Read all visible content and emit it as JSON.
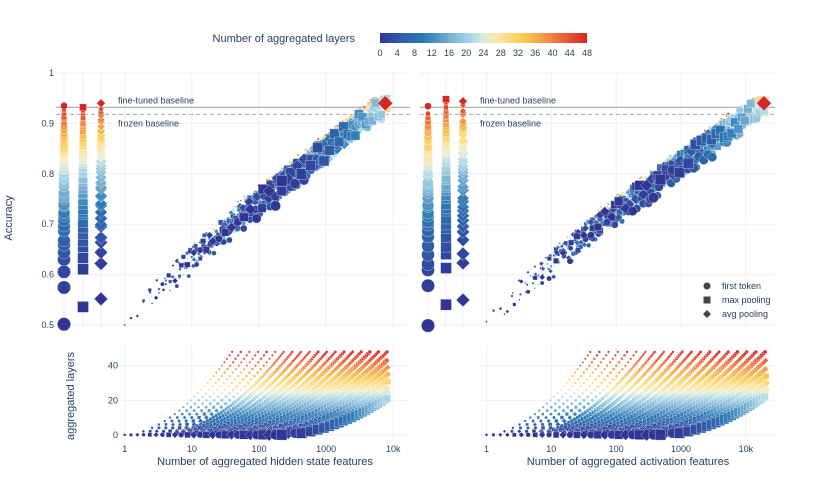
{
  "chart_data": {
    "type": "scatter",
    "colorbar": {
      "title": "Number of aggregated layers",
      "range": [
        0,
        48
      ],
      "ticks": [
        "0",
        "4",
        "8",
        "12",
        "16",
        "20",
        "24",
        "28",
        "32",
        "36",
        "40",
        "44",
        "48"
      ]
    },
    "yaxis_top": {
      "title": "Accuracy",
      "range": [
        0.49,
        1.0
      ],
      "ticks": [
        "0.5",
        "0.6",
        "0.7",
        "0.8",
        "0.9",
        "1"
      ]
    },
    "yaxis_bottom": {
      "title": "aggregated layers",
      "range": [
        -3,
        52
      ],
      "ticks": [
        "0",
        "20",
        "40"
      ]
    },
    "panels": [
      {
        "xlabel": "Number of aggregated hidden state features",
        "xticks": [
          "1",
          "10",
          "100",
          "1000",
          "10k"
        ],
        "xrange_log10": [
          -0.1,
          4.25
        ],
        "x_max": 8000,
        "finetuned_baseline": 0.932,
        "frozen_baseline": 0.918,
        "top_acc_start": 0.5,
        "top_acc_end": 0.95,
        "strip_max_first": 0.935,
        "strip_max_max": 0.932,
        "strip_max_avg": 0.94
      },
      {
        "xlabel": "Number of aggregated activation features",
        "xticks": [
          "1",
          "10",
          "100",
          "1000",
          "10k"
        ],
        "xrange_log10": [
          -0.1,
          4.45
        ],
        "x_max": 20000,
        "finetuned_baseline": 0.932,
        "frozen_baseline": 0.918,
        "top_acc_start": 0.5,
        "top_acc_end": 0.95,
        "strip_max_first": 0.935,
        "strip_max_max": 0.948,
        "strip_max_avg": 0.948
      }
    ],
    "annotations": {
      "finetuned": "fine-tuned baseline",
      "frozen": "frozen baseline"
    },
    "legend": {
      "position": "bottom-right of right panel",
      "entries": [
        {
          "label": "first token",
          "symbol": "circle"
        },
        {
          "label": "max pooling",
          "symbol": "square"
        },
        {
          "label": "avg pooling",
          "symbol": "diamond"
        }
      ]
    },
    "series": [
      {
        "name": "first token",
        "symbol": "circle"
      },
      {
        "name": "max pooling",
        "symbol": "square"
      },
      {
        "name": "avg pooling",
        "symbol": "diamond"
      }
    ]
  }
}
